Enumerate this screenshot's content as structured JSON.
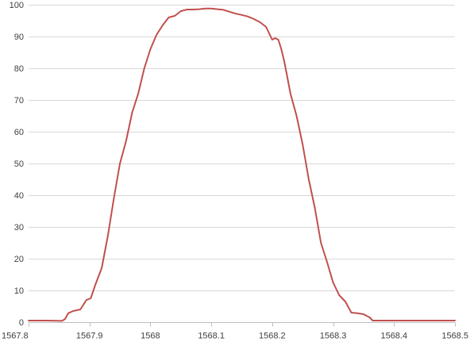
{
  "chart_data": {
    "type": "line",
    "title": "",
    "xlabel": "",
    "ylabel": "",
    "xlim": [
      1567.8,
      1568.5
    ],
    "ylim": [
      0,
      100
    ],
    "x_ticks": [
      "1567.8",
      "1567.9",
      "1568",
      "1568.1",
      "1568.2",
      "1568.3",
      "1568.4",
      "1568.5"
    ],
    "y_ticks": [
      "0",
      "10",
      "20",
      "30",
      "40",
      "50",
      "60",
      "70",
      "80",
      "90",
      "100"
    ],
    "grid": true,
    "legend": "none",
    "series_color": "#c0504d",
    "series": [
      {
        "x": [
          1567.8,
          1567.83,
          1567.855,
          1567.86,
          1567.865,
          1567.873,
          1567.885,
          1567.895,
          1567.902,
          1567.91,
          1567.92,
          1567.93,
          1567.94,
          1567.95,
          1567.96,
          1567.97,
          1567.98,
          1567.99,
          1568.0,
          1568.01,
          1568.02,
          1568.03,
          1568.04,
          1568.05,
          1568.06,
          1568.07,
          1568.08,
          1568.09,
          1568.1,
          1568.11,
          1568.12,
          1568.13,
          1568.14,
          1568.15,
          1568.16,
          1568.17,
          1568.18,
          1568.19,
          1568.2,
          1568.205,
          1568.21,
          1568.215,
          1568.22,
          1568.225,
          1568.23,
          1568.24,
          1568.25,
          1568.26,
          1568.27,
          1568.28,
          1568.29,
          1568.3,
          1568.31,
          1568.32,
          1568.33,
          1568.34,
          1568.35,
          1568.36,
          1568.365,
          1568.37,
          1568.38,
          1568.39,
          1568.4,
          1568.45,
          1568.5
        ],
        "y": [
          0.5,
          0.5,
          0.4,
          1.0,
          2.8,
          3.5,
          4.0,
          7.0,
          7.5,
          12.0,
          17.0,
          27.0,
          39.0,
          50.0,
          57.0,
          66.0,
          72.0,
          80.0,
          86.0,
          90.5,
          93.5,
          96.0,
          96.5,
          98.0,
          98.5,
          98.5,
          98.6,
          98.8,
          98.8,
          98.6,
          98.4,
          97.8,
          97.2,
          96.8,
          96.3,
          95.5,
          94.5,
          93.0,
          89.0,
          89.5,
          89.0,
          86.0,
          82.0,
          77.0,
          72.0,
          65.0,
          56.0,
          45.0,
          36.0,
          25.0,
          19.0,
          12.5,
          8.5,
          6.5,
          3.0,
          2.8,
          2.5,
          1.5,
          0.5,
          0.5,
          0.5,
          0.5,
          0.5,
          0.5,
          0.5
        ]
      }
    ]
  }
}
